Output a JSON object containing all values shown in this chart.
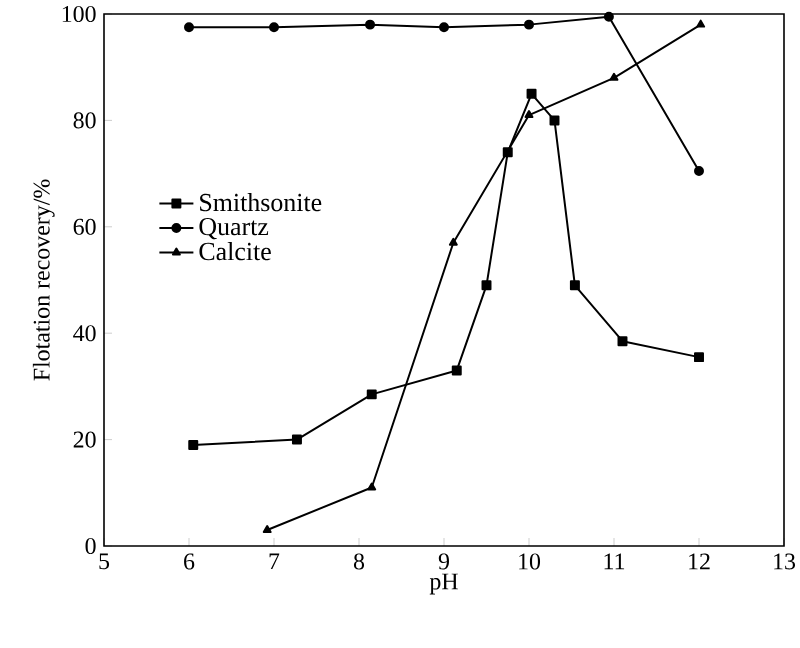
{
  "chart_data": {
    "type": "line",
    "xlabel": "pH",
    "ylabel": "Flotation recovery/%",
    "xlim": [
      5,
      13
    ],
    "xticks": [
      5,
      6,
      7,
      8,
      9,
      10,
      11,
      12,
      13
    ],
    "ylim": [
      0,
      100
    ],
    "yticks": [
      0,
      20,
      40,
      60,
      80,
      100
    ],
    "grid": false,
    "legend": "left",
    "line_style": "solid",
    "series": [
      {
        "name": "Smithsonite",
        "color": "#000000",
        "marker": "square",
        "x": [
          6.05,
          7.27,
          8.15,
          9.15,
          9.5,
          9.75,
          10.03,
          10.3,
          10.54,
          11.1,
          12.0
        ],
        "values": [
          19,
          20,
          28.5,
          33,
          49,
          74,
          85,
          80,
          49,
          38.5,
          35.5
        ]
      },
      {
        "name": "Quartz",
        "color": "#000000",
        "marker": "circle",
        "x": [
          6.0,
          7.0,
          8.13,
          9.0,
          10.0,
          10.94,
          12.0
        ],
        "values": [
          97.5,
          97.5,
          98,
          97.5,
          98,
          99.5,
          70.5
        ]
      },
      {
        "name": "Calcite",
        "color": "#000000",
        "marker": "triangle",
        "x": [
          6.92,
          8.15,
          9.11,
          10.0,
          11.0,
          12.02
        ],
        "values": [
          3,
          11,
          57,
          81,
          88,
          98
        ]
      }
    ]
  }
}
